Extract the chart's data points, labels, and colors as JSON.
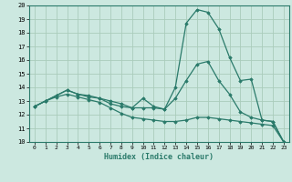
{
  "xlabel": "Humidex (Indice chaleur)",
  "bg_color": "#cce8e0",
  "grid_color": "#aaccbb",
  "line_color": "#2a7a6a",
  "xlim": [
    -0.5,
    23.5
  ],
  "ylim": [
    10,
    20
  ],
  "yticks": [
    10,
    11,
    12,
    13,
    14,
    15,
    16,
    17,
    18,
    19,
    20
  ],
  "xticks": [
    0,
    1,
    2,
    3,
    4,
    5,
    6,
    7,
    8,
    9,
    10,
    11,
    12,
    13,
    14,
    15,
    16,
    17,
    18,
    19,
    20,
    21,
    22,
    23
  ],
  "series1_x": [
    0,
    1,
    2,
    3,
    4,
    5,
    6,
    7,
    8,
    9,
    10,
    11,
    12,
    13,
    14,
    15,
    16,
    17,
    18,
    19,
    20,
    21,
    22,
    23
  ],
  "series1_y": [
    12.6,
    13.0,
    13.4,
    13.8,
    13.5,
    13.4,
    13.2,
    13.0,
    12.8,
    12.5,
    12.5,
    12.5,
    12.4,
    14.0,
    18.7,
    19.7,
    19.5,
    18.3,
    16.2,
    14.5,
    14.6,
    11.6,
    11.5,
    10.0
  ],
  "series2_x": [
    0,
    1,
    2,
    3,
    4,
    5,
    6,
    7,
    8,
    9,
    10,
    11,
    12,
    13,
    14,
    15,
    16,
    17,
    18,
    19,
    20,
    21,
    22,
    23
  ],
  "series2_y": [
    12.6,
    13.0,
    13.4,
    13.8,
    13.5,
    13.3,
    13.2,
    12.8,
    12.6,
    12.5,
    13.2,
    12.6,
    12.4,
    13.2,
    14.5,
    15.7,
    15.9,
    14.5,
    13.5,
    12.2,
    11.8,
    11.6,
    11.5,
    10.0
  ],
  "series3_x": [
    0,
    1,
    2,
    3,
    4,
    5,
    6,
    7,
    8,
    9,
    10,
    11,
    12,
    13,
    14,
    15,
    16,
    17,
    18,
    19,
    20,
    21,
    22,
    23
  ],
  "series3_y": [
    12.6,
    13.0,
    13.3,
    13.5,
    13.3,
    13.1,
    12.9,
    12.5,
    12.1,
    11.8,
    11.7,
    11.6,
    11.5,
    11.5,
    11.6,
    11.8,
    11.8,
    11.7,
    11.6,
    11.5,
    11.4,
    11.3,
    11.2,
    10.0
  ]
}
